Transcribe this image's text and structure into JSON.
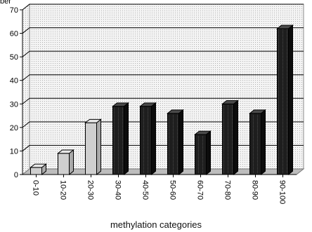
{
  "chart_data": {
    "type": "bar",
    "title": "",
    "ylabel_partial": "ber",
    "xlabel": "methylation categories",
    "categories": [
      "0-10",
      "10-20",
      "20-30",
      "30-40",
      "40-50",
      "50-60",
      "60-70",
      "70-80",
      "80-90",
      "90-100"
    ],
    "values": [
      3,
      9,
      22,
      29,
      29,
      26,
      17,
      30,
      26,
      62
    ],
    "ylim": [
      0,
      70
    ],
    "yticks": [
      0,
      10,
      20,
      30,
      40,
      50,
      60,
      70
    ],
    "grid": true,
    "legend": "none",
    "colors": {
      "light_bar": "#cfcfcf",
      "dark_bar": "#1e1e1e",
      "plot_bg": "#e9e9e9",
      "floor": "#bdbdbd"
    }
  }
}
